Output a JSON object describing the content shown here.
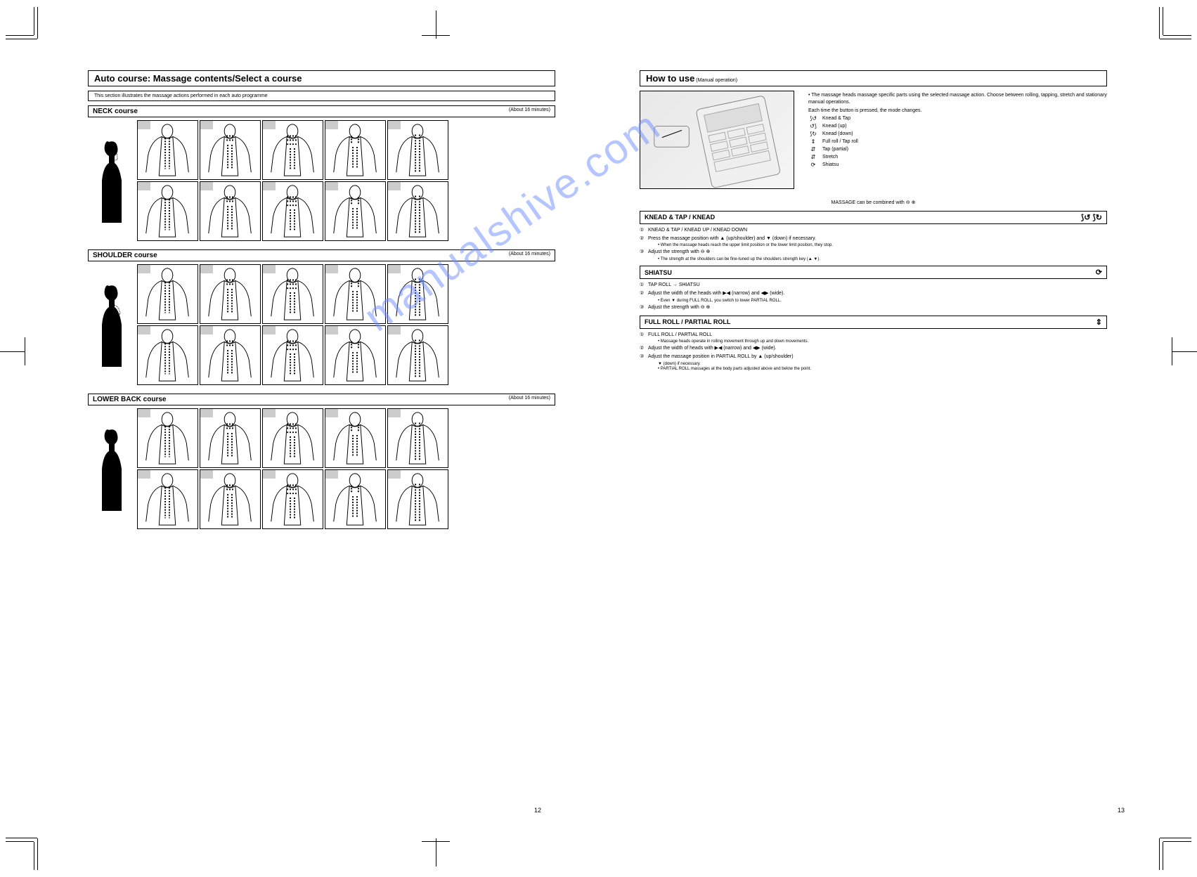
{
  "watermark": "manualshive.com",
  "left": {
    "title": "Auto course: Massage contents/Select a course",
    "subtitle": "This section illustrates the massage actions performed in each auto programme",
    "courses": [
      {
        "name": "NECK course",
        "time": "(About 16 minutes)"
      },
      {
        "name": "SHOULDER course",
        "time": "(About 16 minutes)"
      },
      {
        "name": "LOWER BACK course",
        "time": "(About 16 minutes)"
      }
    ],
    "page_num": "12"
  },
  "right": {
    "title": "How to use",
    "subtitle": "(Manual operation)",
    "intro_dot": "•",
    "intro": "The massage heads massage specific parts using the selected massage action. Choose between rolling, tapping, stretch and stationary manual operations.",
    "key_table_hint": "Each time the button is pressed, the mode changes.",
    "keys": [
      {
        "icon": "⟆↺",
        "label": "Knead & Tap"
      },
      {
        "icon": "↺⟆",
        "label": "Knead (up)"
      },
      {
        "icon": "⟆↻",
        "label": "Knead (down)"
      },
      {
        "icon": "⇕",
        "label": "Full roll / Tap roll"
      },
      {
        "icon": "⇵",
        "label": "Tap (partial)"
      },
      {
        "icon": "⇵",
        "label": "Stretch"
      },
      {
        "icon": "⟳",
        "label": "Shiatsu"
      }
    ],
    "combo_hint": "MASSAGE can be combined with ⊖ ⊕",
    "sections": [
      {
        "title": "KNEAD & TAP / KNEAD",
        "icons": "⟆↺  ⟆↻",
        "steps": [
          {
            "n": "①",
            "t": "KNEAD & TAP / KNEAD UP / KNEAD DOWN"
          },
          {
            "n": "②",
            "t": "Press the massage position with ▲ (up/shoulder) and ▼ (down) if necessary."
          },
          {
            "n": "",
            "t": "• When the massage heads reach the upper limit position or the lower limit position, they stop."
          },
          {
            "n": "③",
            "t": "Adjust the strength with ⊖ ⊕"
          },
          {
            "n": "",
            "t": "• The strength at the shoulders can be fine-tuned up the shoulders strength key (▲ ▼)."
          }
        ]
      },
      {
        "title": "SHIATSU",
        "icons": "⟳",
        "steps": [
          {
            "n": "①",
            "t": "TAP ROLL → SHIATSU"
          },
          {
            "n": "②",
            "t": "Adjust the width of the heads with ▶◀ (narrow) and ◀▶ (wide)."
          },
          {
            "n": "",
            "t": "• Even ▼ during FULL ROLL, you switch to lower PARTIAL ROLL."
          },
          {
            "n": "③",
            "t": "Adjust the strength with ⊖ ⊕"
          }
        ]
      },
      {
        "title": "FULL ROLL / PARTIAL ROLL",
        "icons": "⇕",
        "steps": [
          {
            "n": "①",
            "t": "FULL ROLL / PARTIAL ROLL"
          },
          {
            "n": "",
            "t": "• Massage heads operate in rolling movement through up and down movements."
          },
          {
            "n": "②",
            "t": "Adjust the width of heads with ▶◀ (narrow) and ◀▶ (wide)."
          },
          {
            "n": "③",
            "t": "Adjust the massage position in PARTIAL ROLL by ▲ (up/shoulder)"
          },
          {
            "n": "",
            "t": "▼ (down) if necessary."
          },
          {
            "n": "",
            "t": "• PARTIAL ROLL massages at the body parts adjusted above and below the point."
          }
        ]
      }
    ],
    "page_num": "13"
  },
  "svg_colors": {
    "stroke": "#000000",
    "fill_grey": "#cccccc",
    "watermark": "#6b8cff"
  }
}
